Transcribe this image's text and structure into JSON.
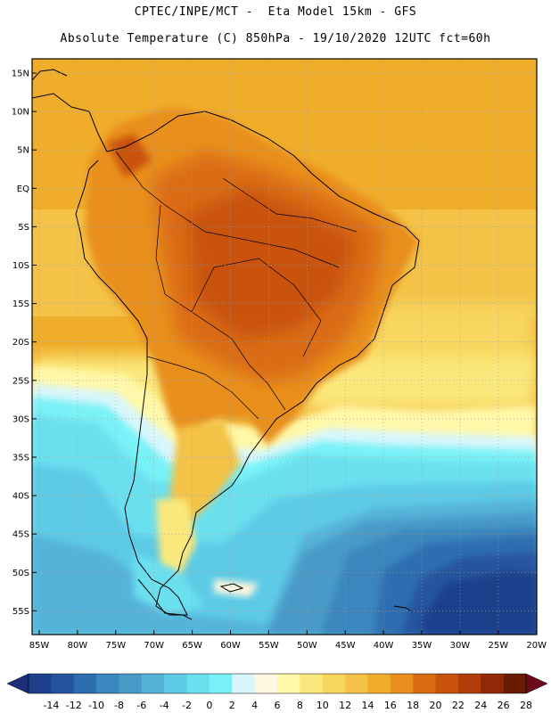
{
  "header": {
    "title_line_1": "CPTEC/INPE/MCT -  Eta Model 15km - GFS",
    "title_line_2": "Absolute Temperature (C) 850hPa - 19/10/2020 12UTC fct=60h"
  },
  "axes": {
    "lat_labels": [
      "15N",
      "10N",
      "5N",
      "EQ",
      "5S",
      "10S",
      "15S",
      "20S",
      "25S",
      "30S",
      "35S",
      "40S",
      "45S",
      "50S",
      "55S"
    ],
    "lon_labels": [
      "85W",
      "80W",
      "75W",
      "70W",
      "65W",
      "60W",
      "55W",
      "50W",
      "45W",
      "40W",
      "35W",
      "30W",
      "25W",
      "20W"
    ]
  },
  "colorbar": {
    "ticks": [
      "-14",
      "-12",
      "-10",
      "-8",
      "-6",
      "-4",
      "-2",
      "0",
      "2",
      "4",
      "6",
      "8",
      "10",
      "12",
      "14",
      "16",
      "18",
      "20",
      "22",
      "24",
      "26",
      "28"
    ],
    "colors": [
      "#1e3f8c",
      "#25549e",
      "#2f6db1",
      "#3a86be",
      "#4a9ac8",
      "#55b3d9",
      "#5dcbe6",
      "#6ae0ef",
      "#79f2f7",
      "#d8f6fb",
      "#fff6e0",
      "#fff8a8",
      "#fbe87c",
      "#f8d65e",
      "#f3c246",
      "#f0ad2a",
      "#e98f1e",
      "#db6c13",
      "#c9520d",
      "#b13d0a",
      "#8f2906",
      "#6b1a04"
    ]
  }
}
